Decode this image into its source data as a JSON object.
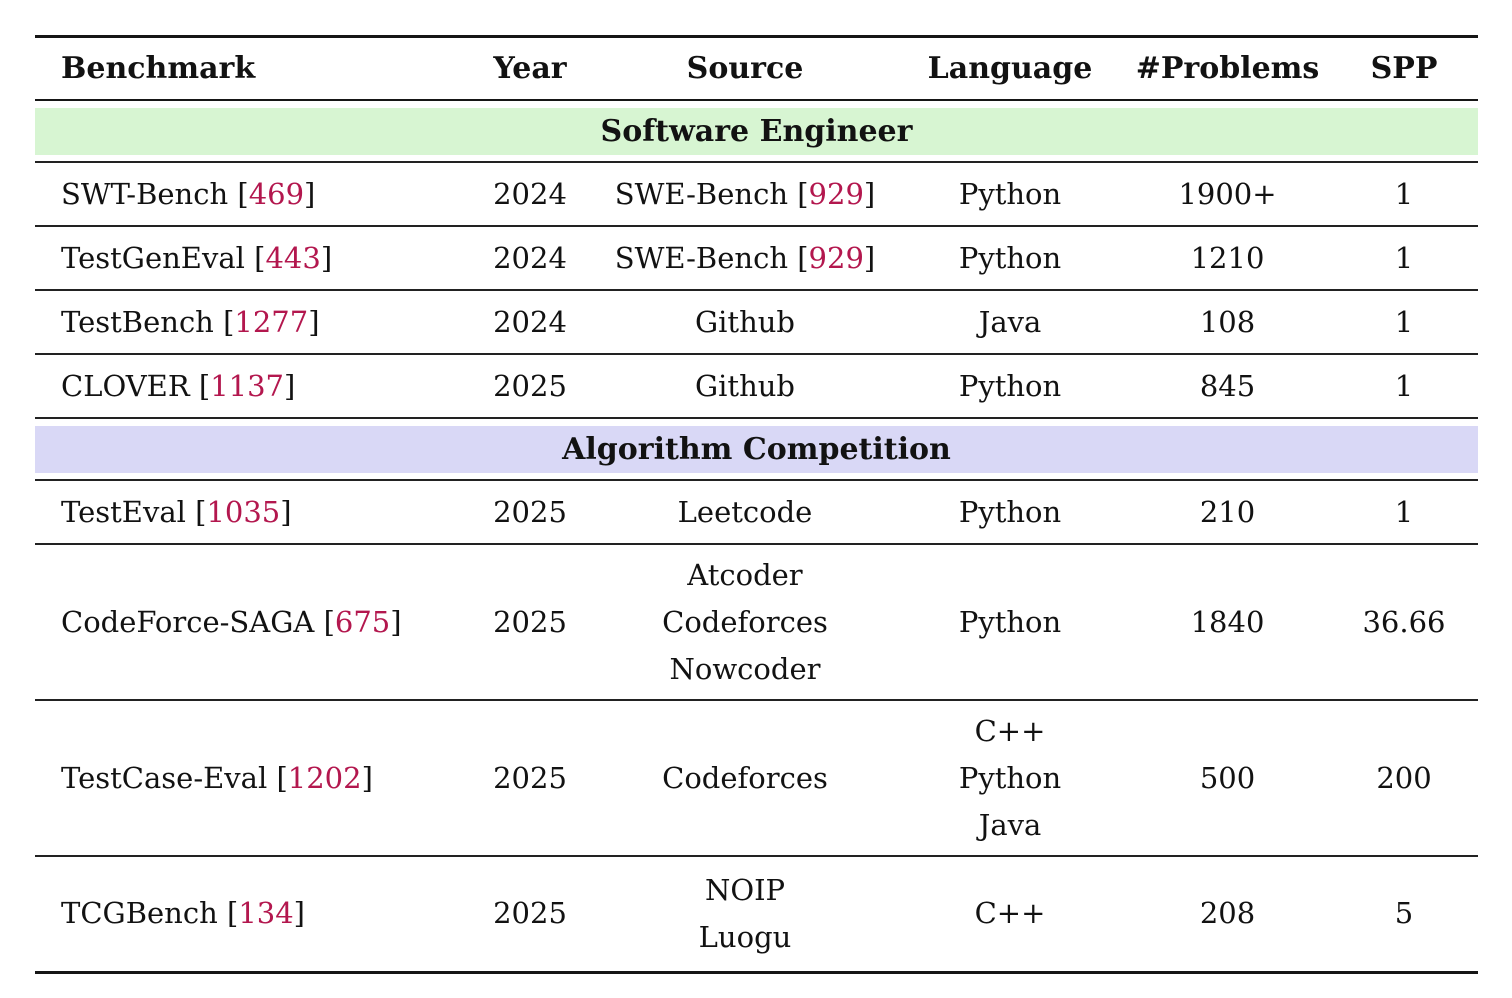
{
  "page": {
    "background": "#ffffff"
  },
  "colors": {
    "citation": "#b3174e",
    "software_band": "#d7f5d2",
    "algorithm_band": "#d9d8f6",
    "rule": "#161616"
  },
  "table": {
    "columns": [
      {
        "label": "Benchmark",
        "align": "left"
      },
      {
        "label": "Year",
        "align": "center"
      },
      {
        "label": "Source",
        "align": "center"
      },
      {
        "label": "Language",
        "align": "center"
      },
      {
        "label": "#Problems",
        "align": "center"
      },
      {
        "label": "SPP",
        "align": "center"
      }
    ],
    "sections": [
      {
        "label": "Software Engineer",
        "band_color": "#d7f5d2",
        "rows": [
          {
            "benchmark": {
              "text": "SWT-Bench",
              "cite": "469"
            },
            "year": "2024",
            "source": [
              {
                "text": "SWE-Bench",
                "cite": "929"
              }
            ],
            "language": [
              "Python"
            ],
            "problems": "1900+",
            "spp": "1"
          },
          {
            "benchmark": {
              "text": "TestGenEval",
              "cite": "443"
            },
            "year": "2024",
            "source": [
              {
                "text": "SWE-Bench",
                "cite": "929"
              }
            ],
            "language": [
              "Python"
            ],
            "problems": "1210",
            "spp": "1"
          },
          {
            "benchmark": {
              "text": "TestBench",
              "cite": "1277"
            },
            "year": "2024",
            "source": [
              {
                "text": "Github"
              }
            ],
            "language": [
              "Java"
            ],
            "problems": "108",
            "spp": "1"
          },
          {
            "benchmark": {
              "text": "CLOVER",
              "cite": "1137"
            },
            "year": "2025",
            "source": [
              {
                "text": "Github"
              }
            ],
            "language": [
              "Python"
            ],
            "problems": "845",
            "spp": "1"
          }
        ]
      },
      {
        "label": "Algorithm Competition",
        "band_color": "#d9d8f6",
        "rows": [
          {
            "benchmark": {
              "text": "TestEval",
              "cite": "1035"
            },
            "year": "2025",
            "source": [
              {
                "text": "Leetcode"
              }
            ],
            "language": [
              "Python"
            ],
            "problems": "210",
            "spp": "1"
          },
          {
            "benchmark": {
              "text": "CodeForce-SAGA",
              "cite": "675"
            },
            "year": "2025",
            "source": [
              {
                "text": "Atcoder"
              },
              {
                "text": "Codeforces"
              },
              {
                "text": "Nowcoder"
              }
            ],
            "language": [
              "Python"
            ],
            "problems": "1840",
            "spp": "36.66"
          },
          {
            "benchmark": {
              "text": "TestCase-Eval",
              "cite": "1202"
            },
            "year": "2025",
            "source": [
              {
                "text": "Codeforces"
              }
            ],
            "language": [
              "C++",
              "Python",
              "Java"
            ],
            "problems": "500",
            "spp": "200"
          },
          {
            "benchmark": {
              "text": "TCGBench",
              "cite": "134"
            },
            "year": "2025",
            "source": [
              {
                "text": "NOIP"
              },
              {
                "text": "Luogu"
              }
            ],
            "language": [
              "C++"
            ],
            "problems": "208",
            "spp": "5"
          }
        ]
      }
    ]
  }
}
